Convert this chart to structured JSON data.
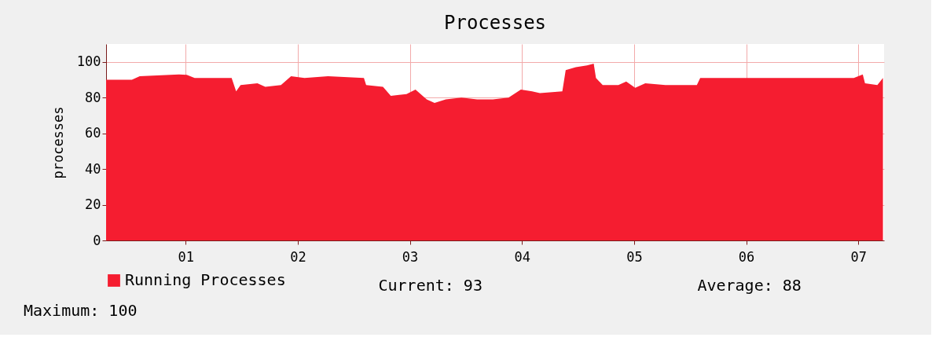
{
  "chart_data": {
    "type": "area",
    "title": "Processes",
    "ylabel": "processes",
    "x": [
      0.29,
      0.52,
      0.59,
      0.94,
      1.01,
      1.08,
      1.41,
      1.45,
      1.49,
      1.64,
      1.71,
      1.85,
      1.94,
      2.06,
      2.27,
      2.59,
      2.61,
      2.76,
      2.83,
      2.97,
      3.05,
      3.15,
      3.22,
      3.32,
      3.46,
      3.6,
      3.74,
      3.88,
      3.99,
      4.09,
      4.16,
      4.36,
      4.39,
      4.48,
      4.58,
      4.64,
      4.66,
      4.72,
      4.86,
      4.93,
      5.01,
      5.1,
      5.28,
      5.56,
      5.59,
      5.91,
      6.26,
      6.61,
      6.96,
      7.04,
      7.06,
      7.17,
      7.22
    ],
    "series": [
      {
        "name": "Running Processes",
        "color": "#f51d30",
        "values": [
          90,
          90,
          92,
          93,
          92.7,
          91,
          91,
          83.5,
          87,
          88,
          86,
          87,
          92,
          91,
          92,
          91,
          87,
          86,
          81,
          82,
          84.5,
          79,
          77,
          79,
          80,
          79,
          79,
          80,
          84.5,
          83.5,
          82.5,
          83.5,
          95.4,
          97,
          98,
          99,
          91,
          87,
          87,
          89,
          85.5,
          88,
          87,
          87,
          91,
          91,
          91,
          91,
          91,
          93,
          88,
          87,
          91
        ]
      }
    ],
    "xlim": [
      0.29,
      7.23
    ],
    "xticks": [
      {
        "value": 1,
        "label": "01"
      },
      {
        "value": 2,
        "label": "02"
      },
      {
        "value": 3,
        "label": "03"
      },
      {
        "value": 4,
        "label": "04"
      },
      {
        "value": 5,
        "label": "05"
      },
      {
        "value": 6,
        "label": "06"
      },
      {
        "value": 7,
        "label": "07"
      }
    ],
    "ylim": [
      0,
      110
    ],
    "yticks": [
      0,
      20,
      40,
      60,
      80,
      100
    ],
    "grid": true,
    "legend": "bottom",
    "annotations": [
      "Current:      93",
      "Average:      88",
      "Maximum:      100"
    ]
  }
}
